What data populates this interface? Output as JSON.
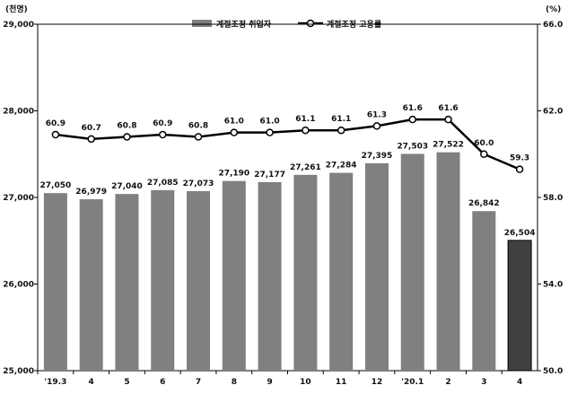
{
  "chart_data": {
    "type": "bar",
    "categories": [
      "'19.3",
      "4",
      "5",
      "6",
      "7",
      "8",
      "9",
      "10",
      "11",
      "12",
      "'20.1",
      "2",
      "3",
      "4"
    ],
    "series": [
      {
        "name": "계절조정 취업자",
        "type": "bar",
        "axis": "left",
        "values": [
          27050,
          26979,
          27040,
          27085,
          27073,
          27190,
          27177,
          27261,
          27284,
          27395,
          27503,
          27522,
          26842,
          26504
        ],
        "labels": [
          "27,050",
          "26,979",
          "27,040",
          "27,085",
          "27,073",
          "27,190",
          "27,177",
          "27,261",
          "27,284",
          "27,395",
          "27,503",
          "27,522",
          "26,842",
          "26,504"
        ],
        "color": "#808080",
        "highlight_color": "#404040",
        "highlight_index": 13
      },
      {
        "name": "계절조정 고용률",
        "type": "line",
        "axis": "right",
        "values": [
          60.9,
          60.7,
          60.8,
          60.9,
          60.8,
          61.0,
          61.0,
          61.1,
          61.1,
          61.3,
          61.6,
          61.6,
          60.0,
          59.3
        ],
        "labels": [
          "60.9",
          "60.7",
          "60.8",
          "60.9",
          "60.8",
          "61.0",
          "61.0",
          "61.1",
          "61.1",
          "61.3",
          "61.6",
          "61.6",
          "60.0",
          "59.3"
        ],
        "color": "#000000"
      }
    ],
    "y_left": {
      "unit": "(천명)",
      "range": [
        25000,
        29000
      ],
      "ticks": [
        25000,
        26000,
        27000,
        28000,
        29000
      ],
      "tick_labels": [
        "25,000",
        "26,000",
        "27,000",
        "28,000",
        "29,000"
      ]
    },
    "y_right": {
      "unit": "(%)",
      "range": [
        50.0,
        66.0
      ],
      "ticks": [
        50.0,
        54.0,
        58.0,
        62.0,
        66.0
      ],
      "tick_labels": [
        "50.0",
        "54.0",
        "58.0",
        "62.0",
        "66.0"
      ]
    },
    "grid": false,
    "legend_position": "top-center"
  }
}
